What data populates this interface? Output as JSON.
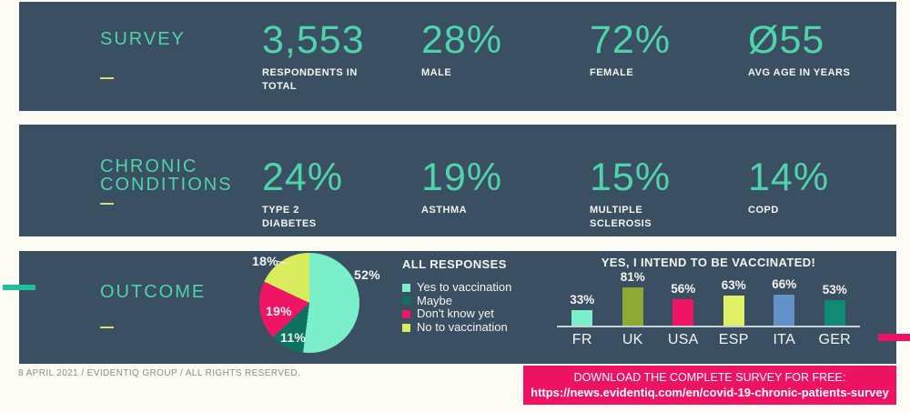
{
  "colors": {
    "page_bg": "#fcfcf5",
    "panel_bg": "#3b4f63",
    "teal": "#4ed3aa",
    "yellow_dash": "#d9dd76",
    "white": "#f3f4ef",
    "footer_gray": "#8d8d87",
    "accent_teal": "#1ec19d",
    "accent_pink": "#ee1263",
    "baseline": "#c9d0d5"
  },
  "survey": {
    "title": "SURVEY",
    "stats": [
      {
        "value": "3,553",
        "label": "RESPONDENTS IN\nTOTAL"
      },
      {
        "value": "28%",
        "label": "MALE"
      },
      {
        "value": "72%",
        "label": "FEMALE"
      },
      {
        "value": "Ø55",
        "label": "AVG AGE IN YEARS"
      }
    ]
  },
  "chronic": {
    "title": "CHRONIC\nCONDITIONS",
    "stats": [
      {
        "value": "24%",
        "label": "TYPE 2\nDIABETES"
      },
      {
        "value": "19%",
        "label": "ASTHMA"
      },
      {
        "value": "15%",
        "label": "MULTIPLE\nSCLEROSIS"
      },
      {
        "value": "14%",
        "label": "COPD"
      }
    ]
  },
  "outcome": {
    "title": "OUTCOME"
  },
  "chart_data": [
    {
      "type": "pie",
      "title": "ALL RESPONSES",
      "labels": [
        "Yes to vaccination",
        "Maybe",
        "Don't know yet",
        "No to vaccination"
      ],
      "values": [
        52,
        11,
        19,
        18
      ],
      "value_labels": [
        "52%",
        "11%",
        "19%",
        "18%"
      ],
      "colors": [
        "#7beeca",
        "#0e7261",
        "#f01564",
        "#d9ec5d"
      ],
      "legend_position": "right",
      "start_angle_deg": 0,
      "direction": "clockwise"
    },
    {
      "type": "bar",
      "title": "YES, I INTEND TO BE VACCINATED!",
      "categories": [
        "FR",
        "UK",
        "USA",
        "ESP",
        "ITA",
        "GER"
      ],
      "values": [
        33,
        81,
        56,
        63,
        66,
        53
      ],
      "value_labels": [
        "33%",
        "81%",
        "56%",
        "63%",
        "66%",
        "53%"
      ],
      "colors": [
        "#7beeca",
        "#8fa937",
        "#f01564",
        "#dff067",
        "#6292c7",
        "#108a74"
      ],
      "ylim": [
        0,
        100
      ],
      "grid": false,
      "legend_position": "none"
    }
  ],
  "footer": {
    "text": "8 APRIL 2021 / EVIDENTIQ GROUP / ALL RIGHTS RESERVED."
  },
  "download": {
    "line1": "DOWNLOAD THE COMPLETE SURVEY FOR FREE:",
    "line2": "https://news.evidentiq.com/en/covid-19-chronic-patients-survey"
  }
}
